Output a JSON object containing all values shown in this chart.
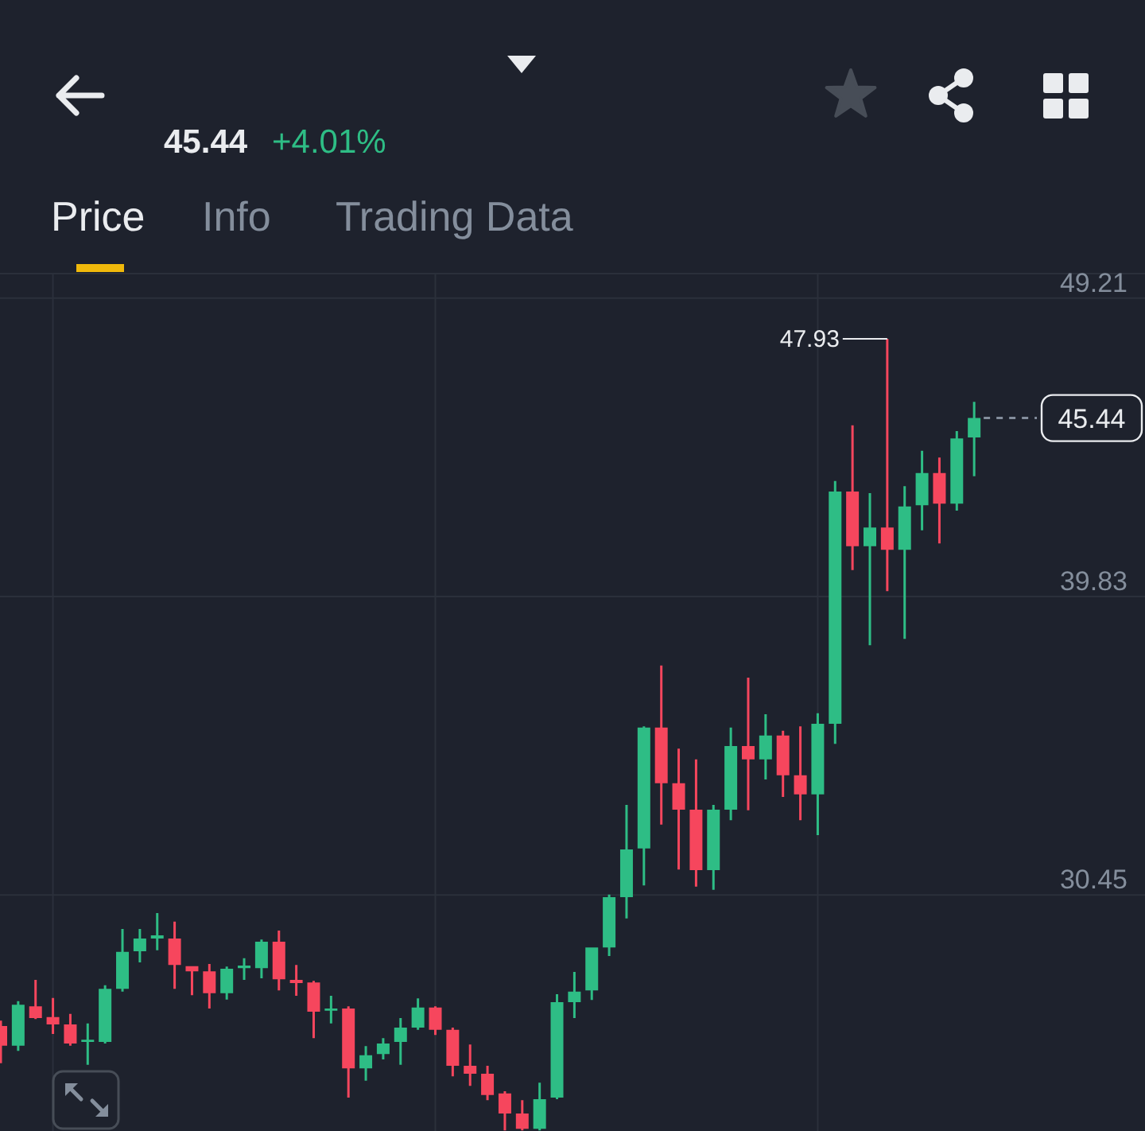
{
  "chart_data": {
    "type": "candlestick",
    "annotations": [
      "45.44",
      "+4.01%",
      "Price",
      "Info",
      "Trading Data",
      "47.93"
    ],
    "categories": [
      null,
      null,
      null,
      null,
      null,
      null,
      null,
      null,
      null,
      null,
      null,
      null,
      null,
      null,
      null,
      null,
      null,
      null,
      null,
      null,
      null,
      null,
      null,
      null,
      null,
      null,
      null,
      null,
      null,
      null,
      null,
      null,
      null,
      null,
      null,
      null,
      null,
      null,
      null,
      null,
      null,
      null,
      null,
      null,
      null,
      null,
      null,
      null,
      null,
      null,
      null,
      null,
      null,
      null,
      null,
      null,
      null
    ],
    "ohlc": [
      [
        26.33,
        26.5,
        25.16,
        25.71
      ],
      [
        25.71,
        27.11,
        25.55,
        27.0
      ],
      [
        26.95,
        27.78,
        26.55,
        26.58
      ],
      [
        26.61,
        27.21,
        26.08,
        26.38
      ],
      [
        26.38,
        26.71,
        25.71,
        25.78
      ],
      [
        25.83,
        26.41,
        25.11,
        25.9
      ],
      [
        25.83,
        27.61,
        25.78,
        27.5
      ],
      [
        27.5,
        29.38,
        27.41,
        28.66
      ],
      [
        28.68,
        29.38,
        28.33,
        29.08
      ],
      [
        29.08,
        29.88,
        28.71,
        29.18
      ],
      [
        29.08,
        29.61,
        27.5,
        28.25
      ],
      [
        28.21,
        28.21,
        27.3,
        28.05
      ],
      [
        28.05,
        28.28,
        26.88,
        27.36
      ],
      [
        27.36,
        28.2,
        27.16,
        28.13
      ],
      [
        28.15,
        28.46,
        27.78,
        28.23
      ],
      [
        28.15,
        29.05,
        27.83,
        28.98
      ],
      [
        28.98,
        29.33,
        27.45,
        27.8
      ],
      [
        27.78,
        28.25,
        27.28,
        27.68
      ],
      [
        27.7,
        27.75,
        25.95,
        26.78
      ],
      [
        26.81,
        27.28,
        26.41,
        26.88
      ],
      [
        26.88,
        26.95,
        24.08,
        25.0
      ],
      [
        25.0,
        25.7,
        24.61,
        25.41
      ],
      [
        25.45,
        25.95,
        25.28,
        25.78
      ],
      [
        25.83,
        26.58,
        25.11,
        26.28
      ],
      [
        26.28,
        27.2,
        26.21,
        26.91
      ],
      [
        26.91,
        26.95,
        26.05,
        26.21
      ],
      [
        26.21,
        26.28,
        24.75,
        25.08
      ],
      [
        25.08,
        25.75,
        24.45,
        24.83
      ],
      [
        24.83,
        25.08,
        24.0,
        24.16
      ],
      [
        24.21,
        24.28,
        23.05,
        23.58
      ],
      [
        23.58,
        24.0,
        23.05,
        23.1
      ],
      [
        23.1,
        24.55,
        23.05,
        24.03
      ],
      [
        24.08,
        27.33,
        24.03,
        27.08
      ],
      [
        27.08,
        28.03,
        26.58,
        27.41
      ],
      [
        27.45,
        28.8,
        27.15,
        28.8
      ],
      [
        28.8,
        30.46,
        28.53,
        30.38
      ],
      [
        30.38,
        33.28,
        29.71,
        31.88
      ],
      [
        31.91,
        35.75,
        30.75,
        35.71
      ],
      [
        35.71,
        37.66,
        32.66,
        33.96
      ],
      [
        33.96,
        35.05,
        31.25,
        33.13
      ],
      [
        33.13,
        34.71,
        30.71,
        31.23
      ],
      [
        31.23,
        33.28,
        30.61,
        33.13
      ],
      [
        33.13,
        35.71,
        32.8,
        35.13
      ],
      [
        35.13,
        37.28,
        33.11,
        34.71
      ],
      [
        34.71,
        36.13,
        34.08,
        35.46
      ],
      [
        35.46,
        35.61,
        33.53,
        34.21
      ],
      [
        34.21,
        35.75,
        32.8,
        33.61
      ],
      [
        33.61,
        36.16,
        32.33,
        35.83
      ],
      [
        35.83,
        43.46,
        35.2,
        43.13
      ],
      [
        43.13,
        45.21,
        40.66,
        41.41
      ],
      [
        41.41,
        43.08,
        38.3,
        42.0
      ],
      [
        42.0,
        47.93,
        40.0,
        41.3
      ],
      [
        41.3,
        43.3,
        38.5,
        42.66
      ],
      [
        42.7,
        44.41,
        41.91,
        43.71
      ],
      [
        43.71,
        44.2,
        41.5,
        42.75
      ],
      [
        42.75,
        45.03,
        42.53,
        44.8
      ],
      [
        44.83,
        45.95,
        43.61,
        45.44
      ]
    ],
    "colors": [
      "#f6465d",
      "#2ebd85",
      "#f6465d",
      "#f6465d",
      "#f6465d",
      "#2ebd85",
      "#2ebd85",
      "#2ebd85",
      "#2ebd85",
      "#2ebd85",
      "#f6465d",
      "#f6465d",
      "#f6465d",
      "#2ebd85",
      "#2ebd85",
      "#2ebd85",
      "#f6465d",
      "#f6465d",
      "#f6465d",
      "#2ebd85",
      "#f6465d",
      "#2ebd85",
      "#2ebd85",
      "#2ebd85",
      "#2ebd85",
      "#f6465d",
      "#f6465d",
      "#f6465d",
      "#f6465d",
      "#f6465d",
      "#f6465d",
      "#2ebd85",
      "#2ebd85",
      "#2ebd85",
      "#2ebd85",
      "#2ebd85",
      "#2ebd85",
      "#2ebd85",
      "#f6465d",
      "#f6465d",
      "#f6465d",
      "#2ebd85",
      "#2ebd85",
      "#f6465d",
      "#2ebd85",
      "#f6465d",
      "#f6465d",
      "#2ebd85",
      "#2ebd85",
      "#f6465d",
      "#2ebd85",
      "#f6465d",
      "#2ebd85",
      "#2ebd85",
      "#f6465d",
      "#2ebd85",
      "#2ebd85"
    ],
    "ylim": [
      23.03,
      49.98
    ],
    "yticks": [
      49.21,
      39.83,
      30.45
    ],
    "grid": true,
    "tick_labels": "y",
    "ref_lines": [
      {
        "axis": "y",
        "value": 45.44,
        "label": "45.44",
        "line_style": "dashed"
      }
    ]
  }
}
